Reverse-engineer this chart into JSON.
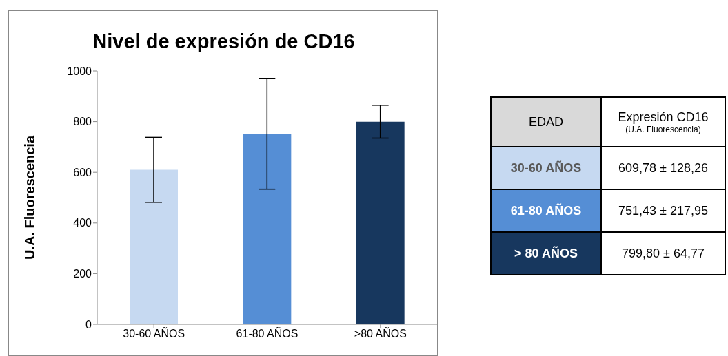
{
  "chart_data": {
    "type": "bar",
    "title": "Nivel de expresión de CD16",
    "ylabel": "U.A. Fluorescencia",
    "categories": [
      "30-60 AÑOS",
      "61-80 AÑOS",
      ">80 AÑOS"
    ],
    "values": [
      609.78,
      751.43,
      799.8
    ],
    "errors": [
      128.26,
      217.95,
      64.77
    ],
    "colors": [
      "#c6d9f1",
      "#558ed5",
      "#17375e"
    ],
    "ylim": [
      0,
      1000
    ],
    "yticks": [
      0,
      200,
      400,
      600,
      800,
      1000
    ],
    "grid": false,
    "legend": false,
    "annotations": [
      "EDAD",
      "Expresión CD16",
      "(U.A. Fluorescencia)",
      "30-60 AÑOS",
      "61-80 AÑOS",
      "> 80 AÑOS",
      "609,78 ± 128,26",
      "751,43 ± 217,95",
      "799,80 ± 64,77"
    ]
  }
}
